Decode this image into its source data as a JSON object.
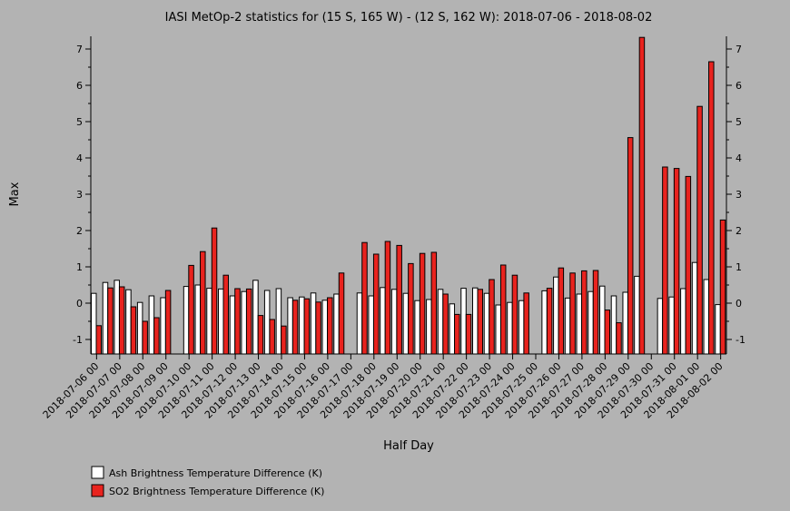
{
  "chart_data": {
    "type": "bar",
    "title": "IASI MetOp-2 statistics for (15 S, 165 W) - (12 S, 162 W): 2018-07-06 - 2018-08-02",
    "xlabel": "Half Day",
    "ylabel": "Max",
    "ylim": [
      -1.4,
      7.35
    ],
    "yticks": [
      -1,
      0,
      1,
      2,
      3,
      4,
      5,
      6,
      7
    ],
    "xticks": [
      "2018-07-06 00",
      "2018-07-07 00",
      "2018-07-08 00",
      "2018-07-09 00",
      "2018-07-10 00",
      "2018-07-11 00",
      "2018-07-12 00",
      "2018-07-13 00",
      "2018-07-14 00",
      "2018-07-15 00",
      "2018-07-16 00",
      "2018-07-17 00",
      "2018-07-18 00",
      "2018-07-19 00",
      "2018-07-20 00",
      "2018-07-21 00",
      "2018-07-22 00",
      "2018-07-23 00",
      "2018-07-24 00",
      "2018-07-25 00",
      "2018-07-26 00",
      "2018-07-27 00",
      "2018-07-28 00",
      "2018-07-29 00",
      "2018-07-30 00",
      "2018-07-31 00",
      "2018-08-01 00",
      "2018-08-02 00"
    ],
    "legend_position": "bottom-left",
    "series": [
      {
        "name": "Ash Brightness Temperature Difference (K)",
        "color": "#ffffff",
        "values": [
          0.27,
          0.57,
          0.63,
          0.37,
          0.02,
          0.2,
          0.15,
          null,
          0.46,
          0.5,
          0.41,
          0.39,
          0.2,
          0.32,
          0.63,
          0.35,
          0.4,
          0.15,
          0.17,
          0.28,
          0.08,
          0.25,
          null,
          0.28,
          0.2,
          0.43,
          0.38,
          0.27,
          0.07,
          0.1,
          0.38,
          -0.02,
          0.41,
          0.42,
          0.27,
          -0.05,
          0.02,
          0.07,
          null,
          0.34,
          0.72,
          0.14,
          0.25,
          0.32,
          0.47,
          0.2,
          0.3,
          0.74,
          null,
          0.13,
          0.17,
          0.4,
          1.12,
          0.65,
          -0.04
        ]
      },
      {
        "name": "SO2 Brightness Temperature Difference (K)",
        "color": "#e8231e",
        "values": [
          -0.62,
          0.42,
          0.45,
          -0.1,
          -0.5,
          -0.4,
          0.35,
          null,
          1.04,
          1.42,
          2.07,
          0.77,
          0.4,
          0.39,
          -0.34,
          -0.45,
          -0.63,
          0.08,
          0.12,
          0.03,
          0.15,
          0.83,
          null,
          1.67,
          1.35,
          1.7,
          1.59,
          1.09,
          1.37,
          1.4,
          0.25,
          -0.31,
          -0.31,
          0.38,
          0.65,
          1.05,
          0.77,
          0.28,
          null,
          0.41,
          0.97,
          0.83,
          0.89,
          0.9,
          -0.19,
          -0.54,
          4.56,
          7.32,
          null,
          3.75,
          3.71,
          3.49,
          5.42,
          6.65,
          2.29
        ]
      }
    ]
  }
}
